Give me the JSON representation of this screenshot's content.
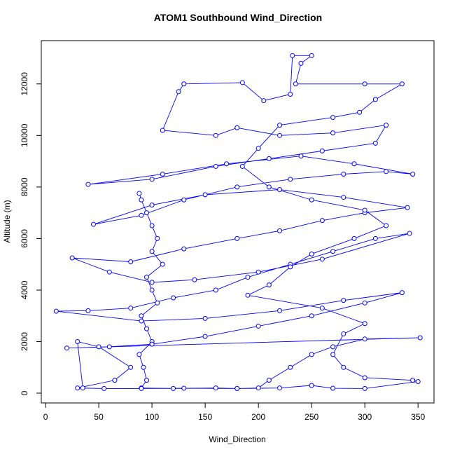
{
  "chart_data": {
    "type": "line",
    "title": "ATOM1 Southbound Wind_Direction",
    "x_label": "Wind_Direction",
    "y_label": "Altitude (m)",
    "color": "#0000ff",
    "xlim": [
      -4,
      365
    ],
    "ylim": [
      -380,
      13680
    ],
    "xticks": [
      0,
      50,
      100,
      150,
      200,
      250,
      300,
      350
    ],
    "yticks": [
      0,
      2000,
      4000,
      6000,
      8000,
      10000,
      12000
    ],
    "x": [
      88,
      90,
      95,
      100,
      105,
      100,
      110,
      95,
      100,
      105,
      90,
      95,
      100,
      88,
      92,
      95,
      90,
      120,
      160,
      180,
      200,
      210,
      230,
      250,
      270,
      300,
      352,
      20,
      60,
      100,
      150,
      200,
      250,
      300,
      335,
      280,
      220,
      150,
      90,
      10,
      40,
      80,
      120,
      160,
      190,
      230,
      270,
      310,
      342,
      260,
      200,
      140,
      100,
      60,
      25,
      80,
      130,
      180,
      220,
      260,
      300,
      340,
      280,
      220,
      150,
      100,
      45,
      90,
      130,
      180,
      230,
      280,
      320,
      345,
      290,
      240,
      170,
      110,
      40,
      100,
      160,
      210,
      260,
      310,
      320,
      270,
      220,
      180,
      160,
      110,
      125,
      130,
      185,
      205,
      230,
      232,
      250,
      240,
      235,
      300,
      335,
      310,
      295,
      270,
      220,
      200,
      185,
      210,
      250,
      300,
      320,
      290,
      250,
      230,
      210,
      190,
      260,
      300,
      280,
      270,
      280,
      300,
      345,
      350,
      300,
      270,
      250,
      220,
      180,
      130,
      90,
      55,
      30,
      65,
      80,
      50,
      30,
      35
    ],
    "values": [
      7750,
      7500,
      7000,
      6500,
      6000,
      5500,
      5000,
      4500,
      4000,
      3500,
      3000,
      2500,
      2000,
      1500,
      1000,
      500,
      200,
      180,
      200,
      180,
      200,
      500,
      1000,
      1500,
      1800,
      2100,
      2150,
      1750,
      1800,
      1900,
      2200,
      2600,
      3000,
      3500,
      3900,
      3600,
      3200,
      2900,
      2800,
      3180,
      3200,
      3300,
      3700,
      4000,
      4500,
      5000,
      5500,
      6000,
      6200,
      5200,
      4700,
      4400,
      4300,
      4700,
      5250,
      5100,
      5600,
      6000,
      6300,
      6700,
      7000,
      7200,
      7600,
      7900,
      7700,
      7300,
      6550,
      6900,
      7500,
      8000,
      8300,
      8500,
      8600,
      8500,
      8900,
      9200,
      8900,
      8500,
      8100,
      8300,
      8800,
      9100,
      9400,
      9700,
      10400,
      10100,
      10000,
      10300,
      10000,
      10200,
      11700,
      12000,
      12050,
      11350,
      11600,
      13100,
      13100,
      12800,
      12000,
      12000,
      12000,
      11400,
      10900,
      10700,
      10400,
      9500,
      8800,
      8000,
      7500,
      7100,
      6500,
      6000,
      5400,
      4900,
      4200,
      3800,
      3300,
      2700,
      2300,
      1500,
      1000,
      600,
      500,
      450,
      180,
      190,
      300,
      200,
      180,
      190,
      180,
      180,
      200,
      500,
      1000,
      1800,
      2000,
      200
    ]
  }
}
